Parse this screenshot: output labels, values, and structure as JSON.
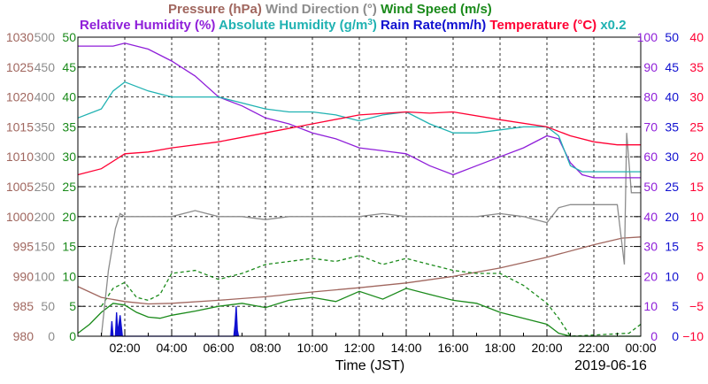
{
  "chart_data": {
    "type": "line",
    "legend_line1": [
      {
        "text": "Pressure (hPa)",
        "color": "#a0665e"
      },
      {
        "text": "Wind Direction (°)",
        "color": "#8c8c8c"
      },
      {
        "text": "Wind Speed (m/s)",
        "color": "#1a8a1a"
      }
    ],
    "legend_line2": [
      {
        "text": "Relative Humidity (%)",
        "color": "#8f1fd9"
      },
      {
        "text": "Absolute Humidity (g/m",
        "color": "#20b2b2",
        "sup": "3",
        "tail": ")"
      },
      {
        "text": "Rain Rate(mm/h)",
        "color": "#1010d0"
      },
      {
        "text": "Temperature (°C)",
        "color": "#ff0033"
      },
      {
        "text": "x0.2",
        "color": "#20b2b2"
      }
    ],
    "xlabel": "Time (JST)",
    "date_label": "2019-06-16",
    "x_range_hours": [
      0,
      24
    ],
    "x_ticks": [
      "02:00",
      "04:00",
      "06:00",
      "08:00",
      "10:00",
      "12:00",
      "14:00",
      "16:00",
      "18:00",
      "20:00",
      "22:00",
      "00:00"
    ],
    "left_axes": [
      {
        "name": "Pressure (hPa)",
        "color": "#a0665e",
        "ticks": [
          "980",
          "985",
          "990",
          "995",
          "1000",
          "1005",
          "1010",
          "1015",
          "1020",
          "1025",
          "1030"
        ]
      },
      {
        "name": "Wind Direction (°)",
        "color": "#8c8c8c",
        "ticks": [
          "0",
          "50",
          "100",
          "150",
          "200",
          "250",
          "300",
          "350",
          "400",
          "450",
          "500"
        ]
      },
      {
        "name": "Wind Speed (m/s)",
        "color": "#1a8a1a",
        "ticks": [
          "0",
          "5",
          "10",
          "15",
          "20",
          "25",
          "30",
          "35",
          "40",
          "45",
          "50"
        ]
      }
    ],
    "right_axes": [
      {
        "name": "Relative Humidity (%)",
        "color": "#8f1fd9",
        "ticks": [
          "0",
          "10",
          "20",
          "30",
          "40",
          "50",
          "60",
          "70",
          "80",
          "90",
          "100"
        ]
      },
      {
        "name": "Rain Rate(mm/h)",
        "color": "#1010d0",
        "ticks": [
          "0",
          "5",
          "10",
          "15",
          "20",
          "25",
          "30",
          "35",
          "40",
          "45",
          "50"
        ]
      },
      {
        "name": "Temperature (°C)",
        "color": "#ff0033",
        "ticks": [
          "−10",
          "−5",
          "0",
          "5",
          "10",
          "15",
          "20",
          "25",
          "30",
          "35",
          "40"
        ]
      }
    ],
    "grid": true,
    "series": [
      {
        "name": "Pressure (hPa)",
        "color": "#a0665e",
        "scale": [
          980,
          1030
        ],
        "points": [
          [
            0,
            988.3
          ],
          [
            1,
            986.5
          ],
          [
            2,
            985.8
          ],
          [
            3,
            985.4
          ],
          [
            4,
            985.5
          ],
          [
            6,
            986.0
          ],
          [
            8,
            986.6
          ],
          [
            10,
            987.4
          ],
          [
            12,
            988.1
          ],
          [
            14,
            988.9
          ],
          [
            16,
            990.0
          ],
          [
            18,
            991.4
          ],
          [
            20,
            993.2
          ],
          [
            22,
            995.3
          ],
          [
            23.2,
            996.4
          ],
          [
            24,
            996.6
          ]
        ]
      },
      {
        "name": "Wind Speed (m/s) 1-min mean",
        "color": "#1a8a1a",
        "scale": [
          0,
          50
        ],
        "points": [
          [
            0,
            0.5
          ],
          [
            0.5,
            2.0
          ],
          [
            1.0,
            4.0
          ],
          [
            1.5,
            5.5
          ],
          [
            2.0,
            5.2
          ],
          [
            2.5,
            4.0
          ],
          [
            3.0,
            3.2
          ],
          [
            3.5,
            3.0
          ],
          [
            4.0,
            3.5
          ],
          [
            5.0,
            4.2
          ],
          [
            6.0,
            5.0
          ],
          [
            7.0,
            5.5
          ],
          [
            8.0,
            4.8
          ],
          [
            9.0,
            6.0
          ],
          [
            10.0,
            6.5
          ],
          [
            11.0,
            5.8
          ],
          [
            12.0,
            7.5
          ],
          [
            13.0,
            6.2
          ],
          [
            14.0,
            8.0
          ],
          [
            15.0,
            7.0
          ],
          [
            16.0,
            6.0
          ],
          [
            17.0,
            5.5
          ],
          [
            18.0,
            4.0
          ],
          [
            19.0,
            3.0
          ],
          [
            20.0,
            2.0
          ],
          [
            20.5,
            0.5
          ],
          [
            21.0,
            0
          ],
          [
            24.0,
            0
          ]
        ]
      },
      {
        "name": "Wind Speed (m/s) gust",
        "color": "#1a8a1a",
        "dash": true,
        "scale": [
          0,
          50
        ],
        "points": [
          [
            1.0,
            5.0
          ],
          [
            1.5,
            8.0
          ],
          [
            2.0,
            9.0
          ],
          [
            2.5,
            6.5
          ],
          [
            3.0,
            6.0
          ],
          [
            3.5,
            7.0
          ],
          [
            4.0,
            10.5
          ],
          [
            5.0,
            11.0
          ],
          [
            6.0,
            9.5
          ],
          [
            7.0,
            10.5
          ],
          [
            8.0,
            12.0
          ],
          [
            9.0,
            12.5
          ],
          [
            10.0,
            13.0
          ],
          [
            11.0,
            12.5
          ],
          [
            12.0,
            13.5
          ],
          [
            13.0,
            12.0
          ],
          [
            14.0,
            13.0
          ],
          [
            15.0,
            12.0
          ],
          [
            16.0,
            11.0
          ],
          [
            17.0,
            10.5
          ],
          [
            18.0,
            10.5
          ],
          [
            19.0,
            8.5
          ],
          [
            20.0,
            5.5
          ],
          [
            20.5,
            3.0
          ],
          [
            21.0,
            0
          ],
          [
            23.5,
            0.5
          ],
          [
            24.0,
            2.0
          ]
        ]
      },
      {
        "name": "Wind Direction (°)",
        "color": "#8c8c8c",
        "scale": [
          0,
          500
        ],
        "points": [
          [
            1.0,
            0
          ],
          [
            1.3,
            110
          ],
          [
            1.6,
            180
          ],
          [
            1.8,
            205
          ],
          [
            2.0,
            200
          ],
          [
            3.0,
            200
          ],
          [
            4.0,
            200
          ],
          [
            5.0,
            210
          ],
          [
            6.0,
            200
          ],
          [
            7.0,
            200
          ],
          [
            8.0,
            195
          ],
          [
            9.0,
            200
          ],
          [
            10.0,
            200
          ],
          [
            11.0,
            200
          ],
          [
            12.0,
            200
          ],
          [
            13.0,
            205
          ],
          [
            14.0,
            200
          ],
          [
            15.0,
            200
          ],
          [
            16.0,
            200
          ],
          [
            17.0,
            200
          ],
          [
            18.0,
            205
          ],
          [
            19.0,
            200
          ],
          [
            20.0,
            190
          ],
          [
            20.5,
            215
          ],
          [
            21.0,
            220
          ],
          [
            22.0,
            220
          ],
          [
            23.0,
            220
          ],
          [
            23.3,
            120
          ],
          [
            23.4,
            340
          ],
          [
            23.6,
            240
          ],
          [
            24.0,
            240
          ]
        ]
      },
      {
        "name": "Relative Humidity (%)",
        "color": "#8f1fd9",
        "scale": [
          0,
          100
        ],
        "points": [
          [
            0,
            97
          ],
          [
            1.5,
            97
          ],
          [
            2.0,
            98
          ],
          [
            3.0,
            96
          ],
          [
            4.0,
            92
          ],
          [
            5.0,
            87
          ],
          [
            6.0,
            80
          ],
          [
            7.0,
            77
          ],
          [
            8.0,
            73
          ],
          [
            9.0,
            71
          ],
          [
            10.0,
            68
          ],
          [
            11.0,
            66
          ],
          [
            12.0,
            63
          ],
          [
            13.0,
            62
          ],
          [
            14.0,
            61
          ],
          [
            15.0,
            57
          ],
          [
            16.0,
            54
          ],
          [
            17.0,
            57
          ],
          [
            18.0,
            60
          ],
          [
            19.0,
            63
          ],
          [
            20.0,
            67
          ],
          [
            20.5,
            66
          ],
          [
            21.0,
            58
          ],
          [
            21.5,
            54
          ],
          [
            22.0,
            53
          ],
          [
            23.0,
            53
          ],
          [
            24.0,
            53
          ]
        ]
      },
      {
        "name": "Absolute Humidity (g/m3) x0.2",
        "color": "#20b2b2",
        "scale": [
          0,
          100
        ],
        "points": [
          [
            0,
            73
          ],
          [
            1.0,
            76
          ],
          [
            1.5,
            82
          ],
          [
            2.0,
            85
          ],
          [
            3.0,
            82
          ],
          [
            4.0,
            80
          ],
          [
            5.0,
            80
          ],
          [
            6.0,
            80
          ],
          [
            7.0,
            78
          ],
          [
            8.0,
            76
          ],
          [
            9.0,
            75
          ],
          [
            10.0,
            75
          ],
          [
            11.0,
            74
          ],
          [
            12.0,
            72
          ],
          [
            13.0,
            74
          ],
          [
            14.0,
            75
          ],
          [
            15.0,
            71
          ],
          [
            16.0,
            68
          ],
          [
            17.0,
            68
          ],
          [
            18.0,
            69
          ],
          [
            19.0,
            70
          ],
          [
            20.0,
            70
          ],
          [
            20.5,
            67
          ],
          [
            21.0,
            57
          ],
          [
            21.5,
            55
          ],
          [
            22.0,
            55
          ],
          [
            23.0,
            55
          ],
          [
            24.0,
            55
          ]
        ]
      },
      {
        "name": "Rain Rate(mm/h)",
        "color": "#1010d0",
        "scale": [
          0,
          50
        ],
        "points": [
          [
            1.4,
            0
          ],
          [
            1.45,
            2.5
          ],
          [
            1.5,
            0
          ],
          [
            1.6,
            0
          ],
          [
            1.65,
            4
          ],
          [
            1.7,
            0.5
          ],
          [
            1.8,
            3.5
          ],
          [
            1.9,
            0
          ],
          [
            6.65,
            0
          ],
          [
            6.7,
            2
          ],
          [
            6.75,
            5
          ],
          [
            6.8,
            1
          ],
          [
            6.85,
            0
          ]
        ]
      },
      {
        "name": "Temperature (°C)",
        "color": "#ff0033",
        "scale": [
          -10,
          40
        ],
        "points": [
          [
            0,
            17
          ],
          [
            1.0,
            18
          ],
          [
            2.0,
            20.5
          ],
          [
            3.0,
            20.8
          ],
          [
            4.0,
            21.5
          ],
          [
            6.0,
            22.5
          ],
          [
            8.0,
            24.0
          ],
          [
            10.0,
            25.5
          ],
          [
            12.0,
            27.0
          ],
          [
            14.0,
            27.5
          ],
          [
            15.0,
            27.3
          ],
          [
            16.0,
            27.5
          ],
          [
            18.0,
            26.2
          ],
          [
            20.0,
            25.0
          ],
          [
            21.0,
            23.5
          ],
          [
            22.0,
            22.5
          ],
          [
            23.0,
            22.0
          ],
          [
            24.0,
            22.0
          ]
        ]
      }
    ]
  }
}
